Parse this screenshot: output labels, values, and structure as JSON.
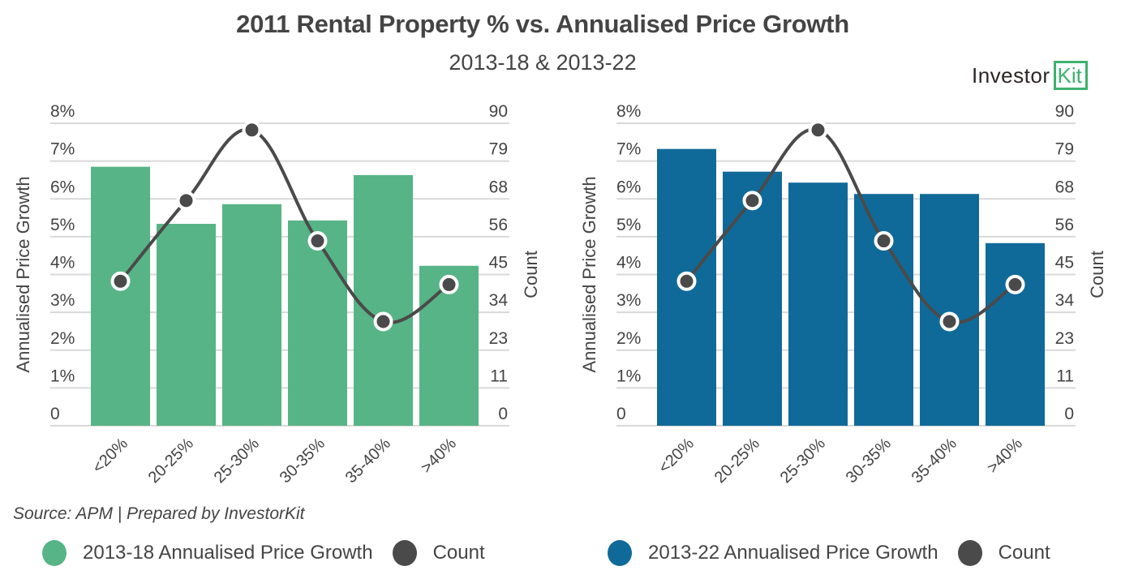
{
  "header": {
    "title": "2011 Rental Property % vs. Annualised Price Growth",
    "subtitle": "2013-18 & 2013-22"
  },
  "logo": {
    "text": "Investor",
    "boxed_text": "Kit",
    "color": "#3db26d"
  },
  "source": "Source: APM | Prepared by InvestorKit",
  "chart_data": [
    {
      "type": "bar",
      "title": "2013-18",
      "categories": [
        "<20%",
        "20-25%",
        "25-30%",
        "30-35%",
        "35-40%",
        ">40%"
      ],
      "ylabel": "Annualised Price Growth",
      "y2label": "Count",
      "ylim": [
        0,
        8
      ],
      "y2lim": [
        0,
        90
      ],
      "yticks": [
        "0",
        "1%",
        "2%",
        "3%",
        "4%",
        "5%",
        "6%",
        "7%",
        "8%"
      ],
      "y2ticks": [
        "0",
        "11",
        "23",
        "34",
        "45",
        "56",
        "68",
        "79",
        "90"
      ],
      "grid": true,
      "legend_position": "bottom",
      "series": [
        {
          "name": "2013-18 Annualised Price Growth",
          "kind": "bar",
          "axis": "left",
          "color": "#57b486",
          "values": [
            6.85,
            5.34,
            5.86,
            5.43,
            6.63,
            4.23
          ]
        },
        {
          "name": "Count",
          "kind": "line",
          "axis": "right",
          "color": "#4a4a4a",
          "values": [
            43,
            67,
            88,
            55,
            31,
            42
          ]
        }
      ]
    },
    {
      "type": "bar",
      "title": "2013-22",
      "categories": [
        "<20%",
        "20-25%",
        "25-30%",
        "30-35%",
        "35-40%",
        ">40%"
      ],
      "ylabel": "Annualised Price Growth",
      "y2label": "Count",
      "ylim": [
        0,
        8
      ],
      "y2lim": [
        0,
        90
      ],
      "yticks": [
        "0",
        "1%",
        "2%",
        "3%",
        "4%",
        "5%",
        "6%",
        "7%",
        "8%"
      ],
      "y2ticks": [
        "0",
        "11",
        "23",
        "34",
        "45",
        "56",
        "68",
        "79",
        "90"
      ],
      "grid": true,
      "legend_position": "bottom",
      "series": [
        {
          "name": "2013-22 Annualised Price Growth",
          "kind": "bar",
          "axis": "left",
          "color": "#106a99",
          "values": [
            7.32,
            6.72,
            6.43,
            6.13,
            6.13,
            4.83
          ]
        },
        {
          "name": "Count",
          "kind": "line",
          "axis": "right",
          "color": "#4a4a4a",
          "values": [
            43,
            67,
            88,
            55,
            31,
            42
          ]
        }
      ]
    }
  ]
}
